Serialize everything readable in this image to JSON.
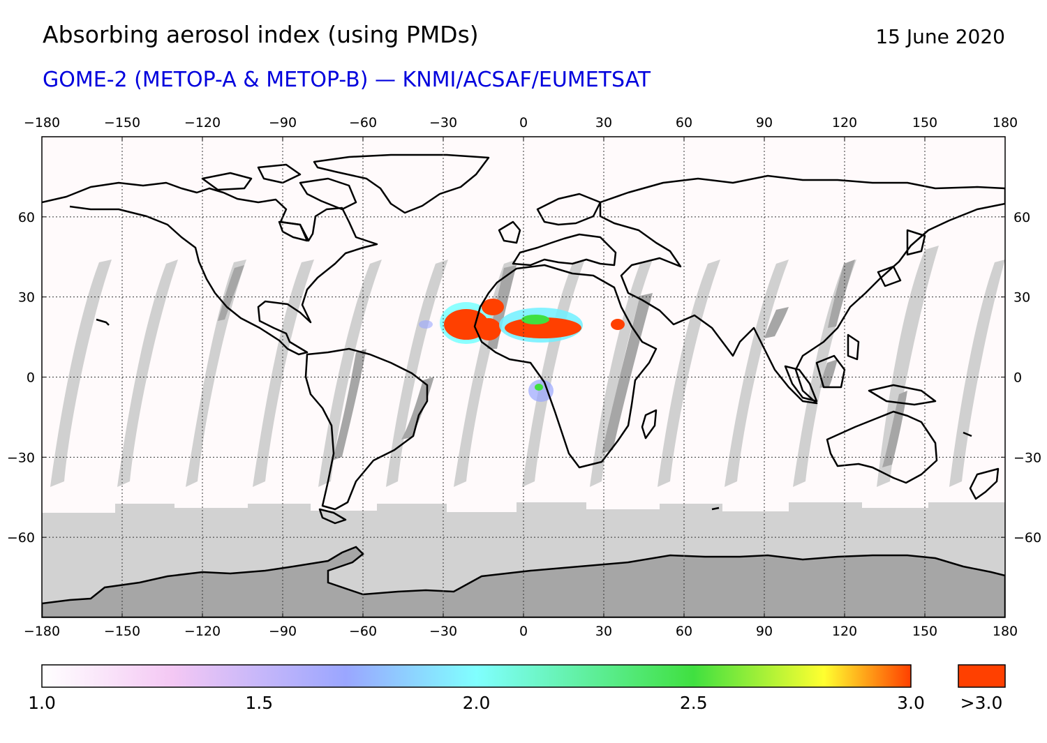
{
  "header": {
    "title": "Absorbing aerosol index (using PMDs)",
    "date": "15 June 2020",
    "subtitle": "GOME-2 (METOP-A & METOP-B) — KNMI/ACSAF/EUMETSAT"
  },
  "map": {
    "lon_ticks": [
      "−180",
      "−150",
      "−120",
      "−90",
      "−60",
      "−30",
      "0",
      "30",
      "60",
      "90",
      "120",
      "150",
      "180"
    ],
    "lat_ticks": [
      "60",
      "30",
      "0",
      "−30",
      "−60"
    ],
    "lon_range": [
      -180,
      180
    ],
    "lat_range": [
      -90,
      90
    ],
    "grid": "dotted",
    "colors": {
      "nodata_light": "#d2d2d2",
      "nodata_dark": "#a6a6a6",
      "antarctica": "#a6a6a6",
      "high_aerosol": "#ff4000",
      "coast": "#000000"
    },
    "dust_plume_region": "Sahara / tropical Atlantic, 15–25 N"
  },
  "colorbar": {
    "labels": [
      "1.0",
      "1.5",
      "2.0",
      "2.5",
      "3.0"
    ],
    "overflow_label": ">3.0",
    "overflow_color": "#ff4000",
    "stops": [
      {
        "value": 1.0,
        "color": "#ffffff"
      },
      {
        "value": 1.3,
        "color": "#f4c8f4"
      },
      {
        "value": 1.7,
        "color": "#9aa6ff"
      },
      {
        "value": 2.0,
        "color": "#80ffff"
      },
      {
        "value": 2.5,
        "color": "#40e040"
      },
      {
        "value": 2.8,
        "color": "#ffff30"
      },
      {
        "value": 3.0,
        "color": "#ff4000"
      }
    ]
  }
}
